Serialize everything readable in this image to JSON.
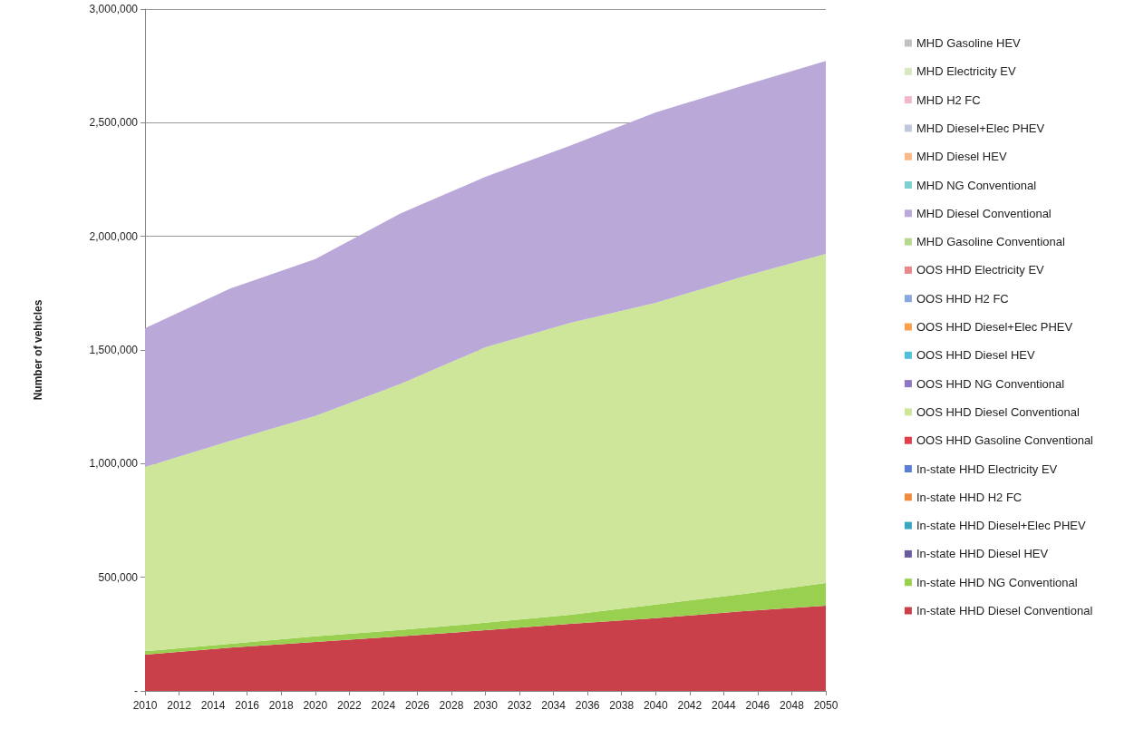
{
  "chart_data": {
    "type": "area",
    "ylabel": "Number of vehicles",
    "stacked": true,
    "grid": "y",
    "legend": "right",
    "x": [
      2010,
      2015,
      2020,
      2025,
      2030,
      2035,
      2040,
      2045,
      2050
    ],
    "xlim": [
      2010,
      2050
    ],
    "xticks": [
      2010,
      2012,
      2014,
      2016,
      2018,
      2020,
      2022,
      2024,
      2026,
      2028,
      2030,
      2032,
      2034,
      2036,
      2038,
      2040,
      2042,
      2044,
      2046,
      2048,
      2050
    ],
    "ylim": [
      0,
      3000000
    ],
    "yticks": [
      {
        "value": 0,
        "label": "-"
      },
      {
        "value": 500000,
        "label": "500,000"
      },
      {
        "value": 1000000,
        "label": "1,000,000"
      },
      {
        "value": 1500000,
        "label": "1,500,000"
      },
      {
        "value": 2000000,
        "label": "2,000,000"
      },
      {
        "value": 2500000,
        "label": "2,500,000"
      },
      {
        "value": 3000000,
        "label": "3,000,000"
      }
    ],
    "series": [
      {
        "name": "In-state HHD Diesel Conventional",
        "color": "#c9404a",
        "values": [
          160000,
          190000,
          215000,
          240000,
          267000,
          295000,
          320000,
          350000,
          375000
        ]
      },
      {
        "name": "In-state HHD NG Conventional",
        "color": "#9ad050",
        "values": [
          15000,
          17000,
          25000,
          28000,
          33000,
          40000,
          60000,
          75000,
          100000
        ]
      },
      {
        "name": "In-state HHD Diesel HEV",
        "color": "#6a5a9e",
        "values": [
          null,
          null,
          null,
          null,
          null,
          null,
          null,
          null,
          null
        ]
      },
      {
        "name": "In-state HHD Diesel+Elec PHEV",
        "color": "#3aa6c0",
        "values": [
          null,
          null,
          null,
          null,
          null,
          null,
          null,
          null,
          null
        ]
      },
      {
        "name": "In-state HHD H2 FC",
        "color": "#f08a3c",
        "values": [
          null,
          null,
          null,
          null,
          null,
          null,
          null,
          null,
          null
        ]
      },
      {
        "name": "In-state HHD Electricity EV",
        "color": "#5b7ed6",
        "values": [
          null,
          null,
          null,
          null,
          null,
          null,
          null,
          null,
          null
        ]
      },
      {
        "name": "OOS HHD Gasoline Conventional",
        "color": "#e0404a",
        "values": [
          null,
          null,
          null,
          null,
          null,
          null,
          null,
          null,
          null
        ]
      },
      {
        "name": "OOS HHD Diesel Conventional",
        "color": "#cde69a",
        "values": [
          810000,
          893000,
          970000,
          1082000,
          1212000,
          1285000,
          1327000,
          1395000,
          1448000
        ]
      },
      {
        "name": "OOS HHD NG Conventional",
        "color": "#8e76c0",
        "values": [
          null,
          null,
          null,
          null,
          null,
          null,
          null,
          null,
          null
        ]
      },
      {
        "name": "OOS HHD Diesel HEV",
        "color": "#50c0d8",
        "values": [
          null,
          null,
          null,
          null,
          null,
          null,
          null,
          null,
          null
        ]
      },
      {
        "name": "OOS HHD Diesel+Elec PHEV",
        "color": "#f8a050",
        "values": [
          null,
          null,
          null,
          null,
          null,
          null,
          null,
          null,
          null
        ]
      },
      {
        "name": "OOS HHD H2 FC",
        "color": "#8aa8e0",
        "values": [
          null,
          null,
          null,
          null,
          null,
          null,
          null,
          null,
          null
        ]
      },
      {
        "name": "OOS HHD Electricity EV",
        "color": "#e88888",
        "values": [
          null,
          null,
          null,
          null,
          null,
          null,
          null,
          null,
          null
        ]
      },
      {
        "name": "MHD Gasoline Conventional",
        "color": "#b8d890",
        "values": [
          null,
          null,
          null,
          null,
          null,
          null,
          null,
          null,
          null
        ]
      },
      {
        "name": "MHD Diesel Conventional",
        "color": "#b9a8d8",
        "values": [
          611000,
          670000,
          690000,
          750000,
          750000,
          780000,
          838000,
          840000,
          849000
        ]
      },
      {
        "name": "MHD NG Conventional",
        "color": "#80d0d0",
        "values": [
          null,
          null,
          null,
          null,
          null,
          null,
          null,
          null,
          null
        ]
      },
      {
        "name": "MHD Diesel HEV",
        "color": "#f8b888",
        "values": [
          null,
          null,
          null,
          null,
          null,
          null,
          null,
          null,
          null
        ]
      },
      {
        "name": "MHD Diesel+Elec PHEV",
        "color": "#c0c8dc",
        "values": [
          null,
          null,
          null,
          null,
          null,
          null,
          null,
          null,
          null
        ]
      },
      {
        "name": "MHD H2 FC",
        "color": "#f0b8c8",
        "values": [
          null,
          null,
          null,
          null,
          null,
          null,
          null,
          null,
          null
        ]
      },
      {
        "name": "MHD Electricity EV",
        "color": "#d8e8c0",
        "values": [
          null,
          null,
          null,
          null,
          null,
          null,
          null,
          null,
          null
        ]
      },
      {
        "name": "MHD Gasoline HEV",
        "color": "#c0c0c0",
        "values": [
          null,
          null,
          null,
          null,
          null,
          null,
          null,
          null,
          null
        ]
      }
    ]
  }
}
